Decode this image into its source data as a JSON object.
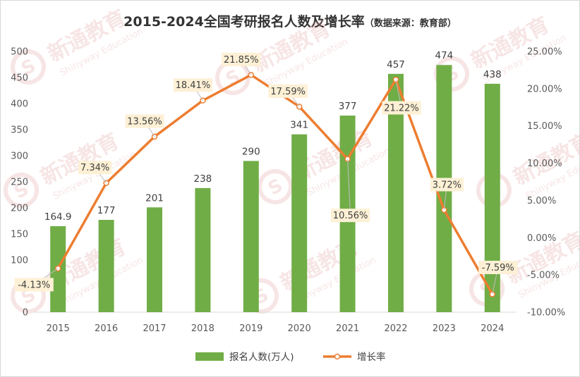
{
  "chart_data": {
    "type": "bar",
    "title": "2015-2024全国考研报名人数及增长率",
    "subtitle": "（数据来源：教育部）",
    "categories": [
      "2015",
      "2016",
      "2017",
      "2018",
      "2019",
      "2020",
      "2021",
      "2022",
      "2023",
      "2024"
    ],
    "series": [
      {
        "name": "报名人数(万人)",
        "type": "bar",
        "axis": "left",
        "color": "#70ad47",
        "values": [
          164.9,
          177,
          201,
          238,
          290,
          341,
          377,
          457,
          474,
          438
        ],
        "labels": [
          "164.9",
          "177",
          "201",
          "238",
          "290",
          "341",
          "377",
          "457",
          "474",
          "438"
        ]
      },
      {
        "name": "增长率",
        "type": "line",
        "axis": "right",
        "color": "#ed7d31",
        "values": [
          -4.13,
          7.34,
          13.56,
          18.41,
          21.85,
          17.59,
          10.56,
          21.22,
          3.72,
          -7.59
        ],
        "labels": [
          "-4.13%",
          "7.34%",
          "13.56%",
          "18.41%",
          "21.85%",
          "17.59%",
          "10.56%",
          "21.22%",
          "3.72%",
          "-7.59%"
        ]
      }
    ],
    "y_left": {
      "min": 0,
      "max": 500,
      "ticks": [
        "0",
        "50",
        "100",
        "150",
        "200",
        "250",
        "300",
        "350",
        "400",
        "450",
        "500"
      ]
    },
    "y_right": {
      "min": -10,
      "max": 25,
      "ticks": [
        "-10.00%",
        "-5.00%",
        "0.00%",
        "5.00%",
        "10.00%",
        "15.00%",
        "20.00%",
        "25.00%"
      ]
    },
    "grid": false,
    "legend": "bottom",
    "watermark": {
      "text": "新通教育",
      "subtext": "Shinyway Education",
      "color": "#e6a3a3"
    },
    "label_box_color": "#fdf0d5"
  }
}
